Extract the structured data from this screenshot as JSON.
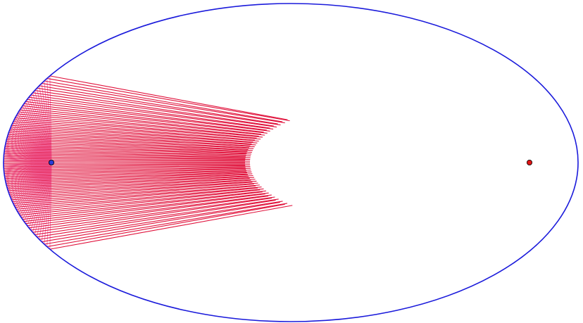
{
  "figure": {
    "description_colors": {
      "ellipse": "#1a1adb",
      "incident_rays": "#f77fbf",
      "reflected_rays": "#e0103a",
      "focus_left": "#2a3bd6",
      "focus_right": "#e01515"
    },
    "ray_count": 90,
    "ray_fan_angle_deg": 180
  }
}
